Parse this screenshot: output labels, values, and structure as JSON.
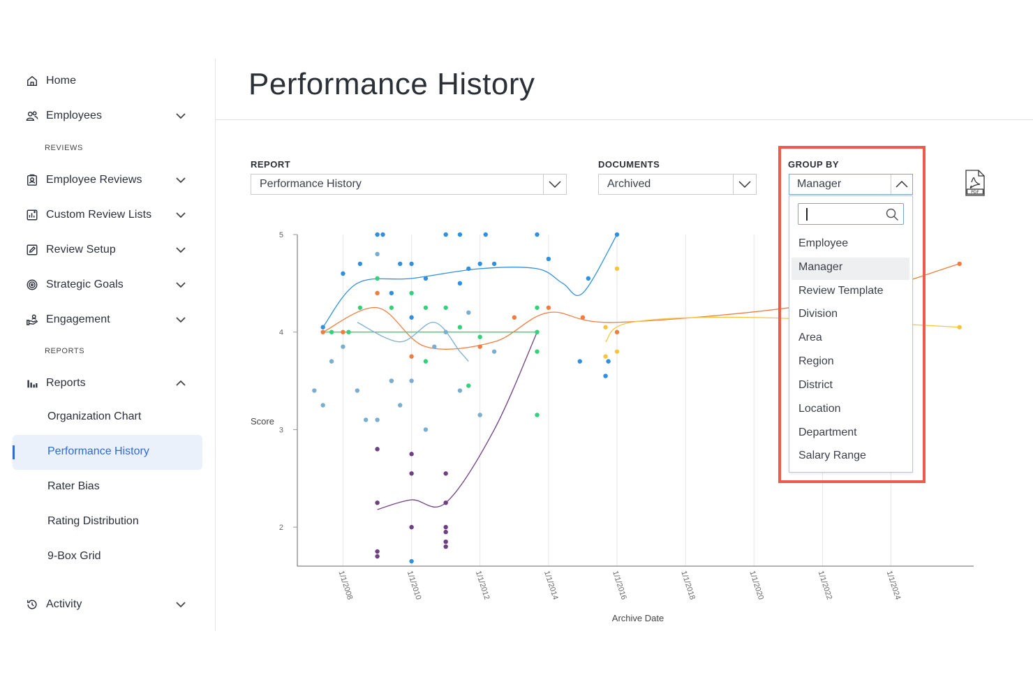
{
  "sidebar": {
    "home": "Home",
    "employees": "Employees",
    "reviews_section": "REVIEWS",
    "employee_reviews": "Employee Reviews",
    "custom_review_lists": "Custom Review Lists",
    "review_setup": "Review Setup",
    "strategic_goals": "Strategic Goals",
    "engagement": "Engagement",
    "reports_section": "REPORTS",
    "reports": "Reports",
    "sub_items": [
      "Organization Chart",
      "Performance History",
      "Rater Bias",
      "Rating Distribution",
      "9-Box Grid"
    ],
    "activity": "Activity"
  },
  "header": {
    "title": "Performance History"
  },
  "filters": {
    "report_label": "REPORT",
    "report_value": "Performance History",
    "documents_label": "DOCUMENTS",
    "documents_value": "Archived",
    "group_by_label": "GROUP BY",
    "group_by_value": "Manager"
  },
  "group_by_dropdown": {
    "search_value": "",
    "options": [
      "Employee",
      "Manager",
      "Review Template",
      "Division",
      "Area",
      "Region",
      "District",
      "Location",
      "Department",
      "Salary Range"
    ],
    "highlighted": "Manager"
  },
  "icons": {
    "export": "pdf-icon",
    "search": "search-icon"
  },
  "colors": {
    "accent": "#2d6bd6",
    "highlight_border": "#ef5a4c"
  },
  "chart_data": {
    "type": "scatter",
    "xlabel": "Archive Date",
    "ylabel": "Score",
    "x_ticks": [
      "1/1/2008",
      "1/1/2010",
      "1/1/2012",
      "1/1/2014",
      "1/1/2016",
      "1/1/2018",
      "1/1/2020",
      "1/1/2022",
      "1/1/2024"
    ],
    "y_ticks": [
      "5",
      "4",
      "3",
      "2"
    ],
    "xlim": [
      "2006-09-01",
      "2026-06-01"
    ],
    "ylim": [
      1.6,
      5
    ],
    "grid": true,
    "legend": "none",
    "series": [
      {
        "color": "#2f8fe0",
        "points": [
          [
            "2007-06-01",
            4.05
          ],
          [
            "2008-01-01",
            4.6
          ],
          [
            "2008-07-01",
            4.7
          ],
          [
            "2009-01-01",
            5
          ],
          [
            "2009-03-01",
            5
          ],
          [
            "2009-06-01",
            4.4
          ],
          [
            "2009-09-01",
            4.7
          ],
          [
            "2010-01-01",
            4.7
          ],
          [
            "2010-01-01",
            4.15
          ],
          [
            "2010-06-01",
            4.55
          ],
          [
            "2011-01-01",
            5
          ],
          [
            "2011-06-01",
            5
          ],
          [
            "2011-06-01",
            4.5
          ],
          [
            "2011-09-01",
            4.65
          ],
          [
            "2012-01-01",
            4.7
          ],
          [
            "2012-03-01",
            5
          ],
          [
            "2012-06-01",
            4.7
          ],
          [
            "2013-09-01",
            5
          ],
          [
            "2014-01-01",
            4.75
          ],
          [
            "2014-12-01",
            3.7
          ],
          [
            "2015-03-01",
            4.55
          ],
          [
            "2015-09-01",
            3.55
          ],
          [
            "2016-01-01",
            5
          ],
          [
            "2010-01-01",
            1.65
          ],
          [
            "2015-10-01",
            3.7
          ]
        ],
        "trend": [
          [
            "2007-06-01",
            4.05
          ],
          [
            "2008-06-01",
            4.5
          ],
          [
            "2010-01-01",
            4.55
          ],
          [
            "2012-01-01",
            4.65
          ],
          [
            "2013-09-01",
            4.65
          ],
          [
            "2014-06-01",
            4.5
          ],
          [
            "2015-01-01",
            4.4
          ],
          [
            "2016-01-01",
            5
          ]
        ]
      },
      {
        "color": "#f07d3f",
        "points": [
          [
            "2007-06-01",
            4
          ],
          [
            "2008-01-01",
            4
          ],
          [
            "2009-01-01",
            4.4
          ],
          [
            "2010-01-01",
            3.75
          ],
          [
            "2012-01-01",
            3.85
          ],
          [
            "2013-01-01",
            4.15
          ],
          [
            "2014-01-01",
            4.25
          ],
          [
            "2015-01-01",
            4.15
          ],
          [
            "2016-01-01",
            4
          ],
          [
            "2026-01-01",
            4.7
          ]
        ],
        "trend": [
          [
            "2007-06-01",
            4
          ],
          [
            "2009-01-01",
            4.25
          ],
          [
            "2010-06-01",
            3.85
          ],
          [
            "2012-06-01",
            3.9
          ],
          [
            "2014-01-01",
            4.2
          ],
          [
            "2016-01-01",
            4.1
          ],
          [
            "2022-01-01",
            4.3
          ],
          [
            "2026-01-01",
            4.7
          ]
        ]
      },
      {
        "color": "#33d17a",
        "points": [
          [
            "2007-09-01",
            4
          ],
          [
            "2008-03-01",
            4
          ],
          [
            "2008-07-01",
            4.25
          ],
          [
            "2009-01-01",
            4.55
          ],
          [
            "2009-06-01",
            4.25
          ],
          [
            "2010-01-01",
            4.4
          ],
          [
            "2010-06-01",
            4.25
          ],
          [
            "2011-01-01",
            4.25
          ],
          [
            "2011-06-01",
            4.05
          ],
          [
            "2012-01-01",
            3.95
          ],
          [
            "2013-09-01",
            4.25
          ],
          [
            "2013-09-01",
            4
          ],
          [
            "2013-09-01",
            3.8
          ],
          [
            "2013-09-01",
            3.15
          ],
          [
            "2009-06-01",
            3.5
          ],
          [
            "2010-06-01",
            3.7
          ],
          [
            "2011-09-01",
            3.45
          ]
        ],
        "trend": [
          [
            "2007-06-01",
            4
          ],
          [
            "2013-09-01",
            4
          ]
        ]
      },
      {
        "color": "#7aaed0",
        "points": [
          [
            "2007-03-01",
            3.4
          ],
          [
            "2007-06-01",
            3.25
          ],
          [
            "2007-09-01",
            3.7
          ],
          [
            "2008-01-01",
            3.85
          ],
          [
            "2008-06-01",
            3.4
          ],
          [
            "2008-09-01",
            3.1
          ],
          [
            "2009-01-01",
            3.1
          ],
          [
            "2009-01-01",
            4.8
          ],
          [
            "2009-06-01",
            3.5
          ],
          [
            "2010-01-01",
            3.5
          ],
          [
            "2010-06-01",
            3
          ],
          [
            "2011-01-01",
            4
          ],
          [
            "2011-06-01",
            3.4
          ],
          [
            "2012-01-01",
            3.15
          ],
          [
            "2012-06-01",
            3.8
          ],
          [
            "2011-09-01",
            4.2
          ],
          [
            "2010-09-01",
            3.85
          ],
          [
            "2009-09-01",
            3.25
          ]
        ],
        "trend": [
          [
            "2008-06-01",
            4.1
          ],
          [
            "2009-09-01",
            3.9
          ],
          [
            "2010-09-01",
            4.1
          ],
          [
            "2011-06-01",
            3.8
          ],
          [
            "2011-09-01",
            3.7
          ]
        ]
      },
      {
        "color": "#6f3f83",
        "points": [
          [
            "2009-01-01",
            2.8
          ],
          [
            "2009-01-01",
            2.25
          ],
          [
            "2009-01-01",
            1.75
          ],
          [
            "2009-01-01",
            1.7
          ],
          [
            "2010-01-01",
            2.75
          ],
          [
            "2010-01-01",
            2.55
          ],
          [
            "2010-01-01",
            2
          ],
          [
            "2011-01-01",
            2.55
          ],
          [
            "2011-01-01",
            2.25
          ],
          [
            "2011-01-01",
            2
          ],
          [
            "2011-01-01",
            1.95
          ],
          [
            "2011-01-01",
            1.85
          ],
          [
            "2011-01-01",
            1.8
          ]
        ],
        "trend": [
          [
            "2009-01-01",
            2.18
          ],
          [
            "2010-01-01",
            2.28
          ],
          [
            "2011-01-01",
            2.25
          ],
          [
            "2012-06-01",
            3
          ],
          [
            "2013-09-01",
            4
          ]
        ]
      },
      {
        "color": "#f5c540",
        "points": [
          [
            "2015-09-01",
            4.05
          ],
          [
            "2016-01-01",
            4.65
          ],
          [
            "2015-09-01",
            3.75
          ],
          [
            "2016-01-01",
            3.8
          ],
          [
            "2026-01-01",
            4.05
          ]
        ],
        "trend": [
          [
            "2015-09-01",
            3.9
          ],
          [
            "2016-06-01",
            4.1
          ],
          [
            "2020-01-01",
            4.15
          ],
          [
            "2026-01-01",
            4.05
          ]
        ]
      }
    ]
  }
}
